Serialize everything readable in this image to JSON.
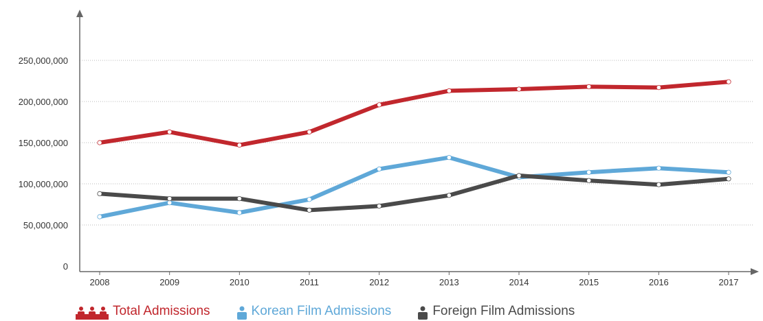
{
  "chart_data": {
    "type": "line",
    "categories": [
      "2008",
      "2009",
      "2010",
      "2011",
      "2012",
      "2013",
      "2014",
      "2015",
      "2016",
      "2017"
    ],
    "yticks": [
      "0",
      "50,000,000",
      "100,000,000",
      "150,000,000",
      "200,000,000",
      "250,000,000"
    ],
    "ytick_values": [
      0,
      50000000,
      100000000,
      150000000,
      200000000,
      250000000
    ],
    "ylim": [
      0,
      275000000
    ],
    "grid": true,
    "legend_position": "bottom-left",
    "series": [
      {
        "name": "Total Admissions",
        "color": "#c1272d",
        "icon": "three-people-icon",
        "values": [
          150000000,
          163000000,
          147000000,
          163000000,
          196000000,
          213000000,
          215000000,
          218000000,
          217000000,
          224000000
        ]
      },
      {
        "name": "Korean Film Admissions",
        "color": "#5fa8d8",
        "icon": "single-person-icon",
        "values": [
          60000000,
          77000000,
          65000000,
          81000000,
          118000000,
          132000000,
          108000000,
          114000000,
          119000000,
          114000000
        ]
      },
      {
        "name": "Foreign Film Admissions",
        "color": "#4a4a4a",
        "icon": "single-person-icon",
        "values": [
          88000000,
          82000000,
          82000000,
          68000000,
          73000000,
          86000000,
          110000000,
          104000000,
          99000000,
          106000000
        ]
      }
    ]
  }
}
